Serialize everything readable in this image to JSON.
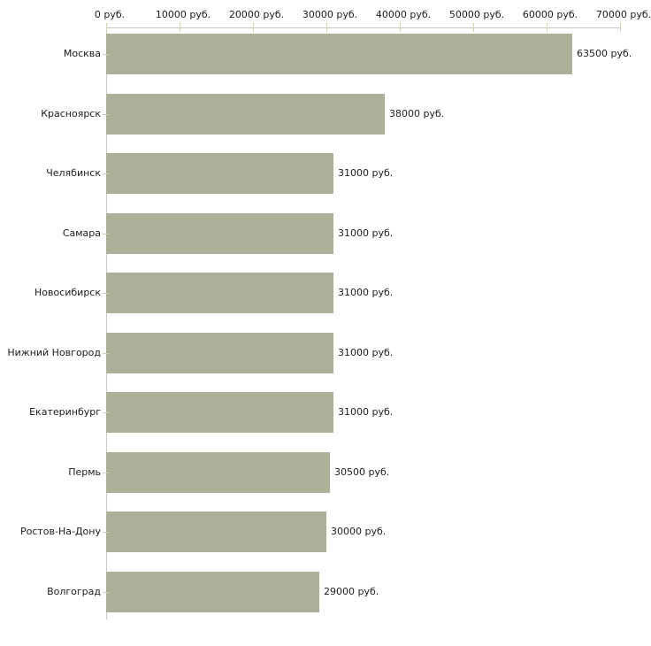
{
  "chart_data": {
    "type": "bar",
    "orientation": "horizontal",
    "categories": [
      "Москва",
      "Красноярск",
      "Челябинск",
      "Самара",
      "Новосибирск",
      "Нижний Новгород",
      "Екатеринбург",
      "Пермь",
      "Ростов-На-Дону",
      "Волгоград"
    ],
    "values": [
      63500,
      38000,
      31000,
      31000,
      31000,
      31000,
      31000,
      30500,
      30000,
      29000
    ],
    "value_labels": [
      "63500 руб.",
      "38000 руб.",
      "31000 руб.",
      "31000 руб.",
      "31000 руб.",
      "31000 руб.",
      "31000 руб.",
      "30500 руб.",
      "30000 руб.",
      "29000 руб."
    ],
    "x_axis": {
      "position": "top",
      "range": [
        0,
        70000
      ],
      "tick_values": [
        0,
        10000,
        20000,
        30000,
        40000,
        50000,
        60000,
        70000
      ],
      "tick_labels": [
        "0 руб.",
        "10000 руб.",
        "20000 руб.",
        "30000 руб.",
        "40000 руб.",
        "50000 руб.",
        "60000 руб.",
        "70000 руб."
      ],
      "unit": "руб."
    },
    "grid": false,
    "legend": false,
    "colors": {
      "bar": "#abb198",
      "axis_line": "#c9c9c9",
      "tick_mark": "#d2d2ae",
      "text": "#1c1c1c",
      "background": "#ffffff"
    }
  }
}
